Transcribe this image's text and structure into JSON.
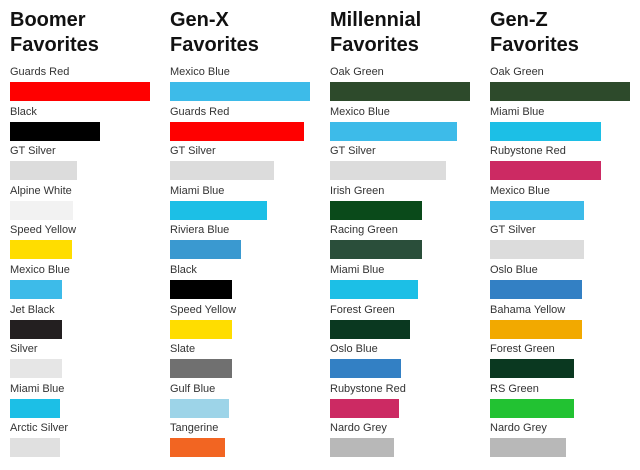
{
  "chart_data": {
    "type": "bar",
    "orientation": "horizontal",
    "value_scale": "relative, longest bar in each panel = 100 (no axis printed)",
    "panels": [
      {
        "title_line1": "Boomer",
        "title_line2": "Favorites",
        "categories": [
          "Guards Red",
          "Black",
          "GT Silver",
          "Alpine White",
          "Speed Yellow",
          "Mexico Blue",
          "Jet Black",
          "Silver",
          "Miami Blue",
          "Arctic Silver"
        ],
        "values": [
          100,
          64,
          48,
          45,
          44,
          37,
          37,
          37,
          36,
          36
        ],
        "colors": [
          "#ff0000",
          "#000000",
          "#dcdcdc",
          "#f2f2f2",
          "#ffdd00",
          "#3dbbe9",
          "#231f20",
          "#e6e6e6",
          "#1cbfe6",
          "#e0e0e0"
        ]
      },
      {
        "title_line1": "Gen-X",
        "title_line2": "Favorites",
        "categories": [
          "Mexico Blue",
          "Guards Red",
          "GT Silver",
          "Miami Blue",
          "Riviera Blue",
          "Black",
          "Speed Yellow",
          "Slate",
          "Gulf Blue",
          "Tangerine"
        ],
        "values": [
          100,
          96,
          74,
          69,
          51,
          44,
          44,
          44,
          42,
          39
        ],
        "colors": [
          "#3dbbe9",
          "#ff0000",
          "#dcdcdc",
          "#1cbfe6",
          "#3a99d0",
          "#000000",
          "#ffdd00",
          "#707070",
          "#9dd4e8",
          "#f26522"
        ]
      },
      {
        "title_line1": "Millennial",
        "title_line2": "Favorites",
        "categories": [
          "Oak Green",
          "Mexico Blue",
          "GT Silver",
          "Irish Green",
          "Racing Green",
          "Miami Blue",
          "Forest Green",
          "Oslo Blue",
          "Rubystone Red",
          "Nardo Grey"
        ],
        "values": [
          100,
          91,
          83,
          66,
          66,
          63,
          57,
          51,
          49,
          46
        ],
        "colors": [
          "#2d4a2b",
          "#3dbbe9",
          "#dcdcdc",
          "#0a4a1a",
          "#2a4e3a",
          "#1cbfe6",
          "#0a3820",
          "#3380c4",
          "#cc2a63",
          "#b8b8b8"
        ]
      },
      {
        "title_line1": "Gen-Z",
        "title_line2": "Favorites",
        "categories": [
          "Oak Green",
          "Miami Blue",
          "Rubystone Red",
          "Mexico Blue",
          "GT Silver",
          "Oslo Blue",
          "Bahama Yellow",
          "Forest Green",
          "RS Green",
          "Nardo Grey"
        ],
        "values": [
          100,
          79,
          79,
          67,
          67,
          66,
          66,
          60,
          60,
          54
        ],
        "colors": [
          "#2d4a2b",
          "#1cbfe6",
          "#cc2a63",
          "#3dbbe9",
          "#dcdcdc",
          "#3380c4",
          "#f2a900",
          "#0a3820",
          "#22c232",
          "#b8b8b8"
        ]
      }
    ]
  }
}
